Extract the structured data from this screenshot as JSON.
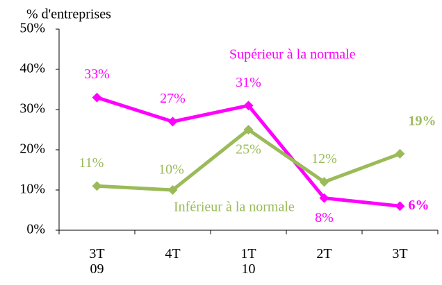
{
  "chart_data": {
    "type": "line",
    "y_label": "% d'entreprises",
    "categories": [
      "3T 09",
      "4T",
      "1T 10",
      "2T",
      "3T"
    ],
    "series": [
      {
        "name": "Supérieur à la normale",
        "color": "#ff00ff",
        "values": [
          33,
          27,
          31,
          8,
          6
        ],
        "value_labels": [
          "33%",
          "27%",
          "31%",
          "8%",
          "6%"
        ]
      },
      {
        "name": "Inférieur à la normale",
        "color": "#9bbb59",
        "values": [
          11,
          10,
          25,
          12,
          19
        ],
        "value_labels": [
          "11%",
          "10%",
          "25%",
          "12%",
          "19%"
        ]
      }
    ],
    "ylim": [
      0,
      50
    ],
    "yticks": [
      {
        "value": 0,
        "label": "0%"
      },
      {
        "value": 10,
        "label": "10%"
      },
      {
        "value": 20,
        "label": "20%"
      },
      {
        "value": 30,
        "label": "30%"
      },
      {
        "value": 40,
        "label": "40%"
      },
      {
        "value": 50,
        "label": "50%"
      }
    ],
    "grid": false
  }
}
